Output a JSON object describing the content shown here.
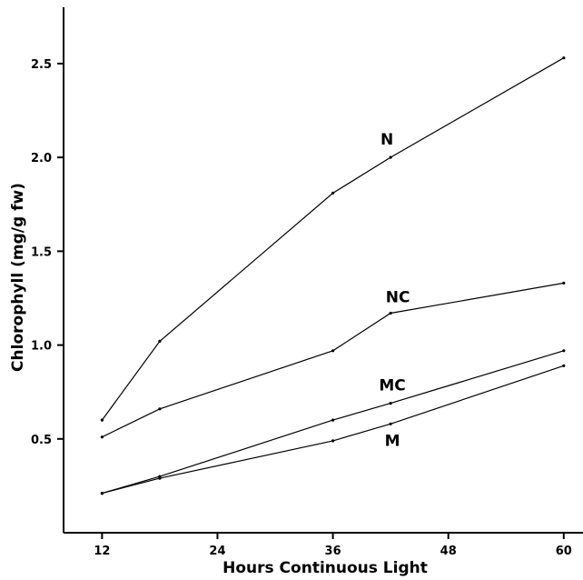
{
  "chart_data": {
    "type": "line",
    "title": "",
    "xlabel": "Hours Continuous Light",
    "ylabel": "Chlorophyll (mg/g fw)",
    "xlim": [
      8,
      62
    ],
    "ylim": [
      0,
      2.8
    ],
    "x_ticks": [
      12,
      24,
      36,
      48,
      60
    ],
    "x_tick_labels": [
      "12",
      "24",
      "36",
      "48",
      "60"
    ],
    "y_ticks": [
      0.5,
      1.0,
      1.5,
      2.0,
      2.5
    ],
    "y_tick_labels": [
      "0.5",
      "1.0",
      "1.5",
      "2.0",
      "2.5"
    ],
    "grid": false,
    "legend": "labels placed on lines",
    "series": [
      {
        "name": "N",
        "x": [
          12,
          18,
          36,
          42,
          60
        ],
        "y": [
          0.6,
          1.02,
          1.81,
          2.0,
          2.53
        ]
      },
      {
        "name": "NC",
        "x": [
          12,
          18,
          36,
          42,
          60
        ],
        "y": [
          0.51,
          0.66,
          0.97,
          1.17,
          1.33
        ]
      },
      {
        "name": "MC",
        "x": [
          12,
          18,
          36,
          42,
          60
        ],
        "y": [
          0.21,
          0.3,
          0.6,
          0.69,
          0.97
        ]
      },
      {
        "name": "M",
        "x": [
          12,
          18,
          36,
          42,
          60
        ],
        "y": [
          0.21,
          0.29,
          0.49,
          0.58,
          0.89
        ]
      }
    ]
  }
}
